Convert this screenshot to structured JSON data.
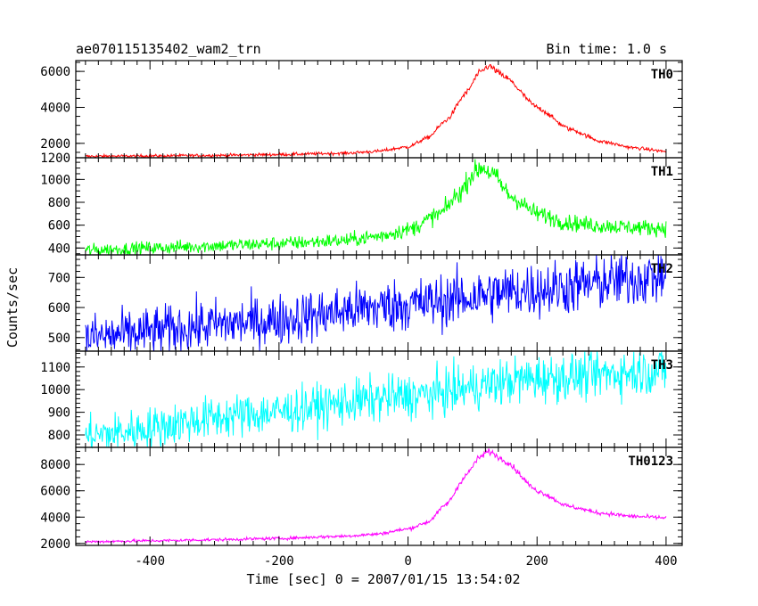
{
  "header": {
    "title": "ae070115135402_wam2_trn",
    "bin_time": "Bin time: 1.0 s"
  },
  "chart_data": {
    "type": "line",
    "xlabel": "Time [sec] 0 = 2007/01/15 13:54:02",
    "ylabel": "Counts/sec",
    "xlim": [
      -515,
      425
    ],
    "xticks": [
      -400,
      -200,
      0,
      200,
      400
    ],
    "x_range": [
      -500,
      400
    ],
    "bin_seconds": 1.0,
    "panels": [
      {
        "name": "TH0",
        "color": "#ff0000",
        "ylim": [
          1200,
          6600
        ],
        "yticks": [
          1200,
          2000,
          4000,
          6000
        ],
        "points": [
          [
            -500,
            1280
          ],
          [
            -400,
            1300
          ],
          [
            -300,
            1330
          ],
          [
            -200,
            1380
          ],
          [
            -100,
            1450
          ],
          [
            -50,
            1550
          ],
          [
            0,
            1800
          ],
          [
            30,
            2300
          ],
          [
            60,
            3300
          ],
          [
            90,
            4800
          ],
          [
            110,
            5900
          ],
          [
            125,
            6300
          ],
          [
            150,
            5700
          ],
          [
            200,
            4000
          ],
          [
            250,
            2800
          ],
          [
            300,
            2100
          ],
          [
            350,
            1750
          ],
          [
            400,
            1550
          ]
        ],
        "noise": 40
      },
      {
        "name": "TH1",
        "color": "#00ff00",
        "ylim": [
          340,
          1190
        ],
        "yticks": [
          400,
          600,
          800,
          1000
        ],
        "points": [
          [
            -500,
            380
          ],
          [
            -400,
            400
          ],
          [
            -300,
            420
          ],
          [
            -200,
            440
          ],
          [
            -100,
            465
          ],
          [
            -50,
            500
          ],
          [
            0,
            560
          ],
          [
            50,
            700
          ],
          [
            80,
            880
          ],
          [
            100,
            1050
          ],
          [
            115,
            1110
          ],
          [
            130,
            1050
          ],
          [
            160,
            850
          ],
          [
            200,
            700
          ],
          [
            250,
            620
          ],
          [
            300,
            595
          ],
          [
            350,
            580
          ],
          [
            400,
            575
          ]
        ],
        "noise": 28
      },
      {
        "name": "TH2",
        "color": "#0000ff",
        "ylim": [
          455,
          775
        ],
        "yticks": [
          500,
          600,
          700
        ],
        "points": [
          [
            -500,
            500
          ],
          [
            -250,
            550
          ],
          [
            0,
            610
          ],
          [
            200,
            660
          ],
          [
            400,
            705
          ]
        ],
        "noise": 40
      },
      {
        "name": "TH3",
        "color": "#00ffff",
        "ylim": [
          745,
          1170
        ],
        "yticks": [
          800,
          900,
          1000,
          1100
        ],
        "points": [
          [
            -500,
            795
          ],
          [
            -250,
            890
          ],
          [
            0,
            970
          ],
          [
            200,
            1050
          ],
          [
            400,
            1085
          ]
        ],
        "noise": 45
      },
      {
        "name": "TH0123",
        "color": "#ff00ff",
        "ylim": [
          1850,
          9300
        ],
        "yticks": [
          2000,
          4000,
          6000,
          8000
        ],
        "points": [
          [
            -500,
            2130
          ],
          [
            -400,
            2200
          ],
          [
            -300,
            2280
          ],
          [
            -200,
            2380
          ],
          [
            -100,
            2550
          ],
          [
            -50,
            2700
          ],
          [
            0,
            3100
          ],
          [
            30,
            3600
          ],
          [
            60,
            5000
          ],
          [
            90,
            7200
          ],
          [
            110,
            8500
          ],
          [
            125,
            9000
          ],
          [
            150,
            8300
          ],
          [
            200,
            6000
          ],
          [
            250,
            4800
          ],
          [
            300,
            4300
          ],
          [
            350,
            4050
          ],
          [
            400,
            3950
          ]
        ],
        "noise": 55
      }
    ]
  }
}
